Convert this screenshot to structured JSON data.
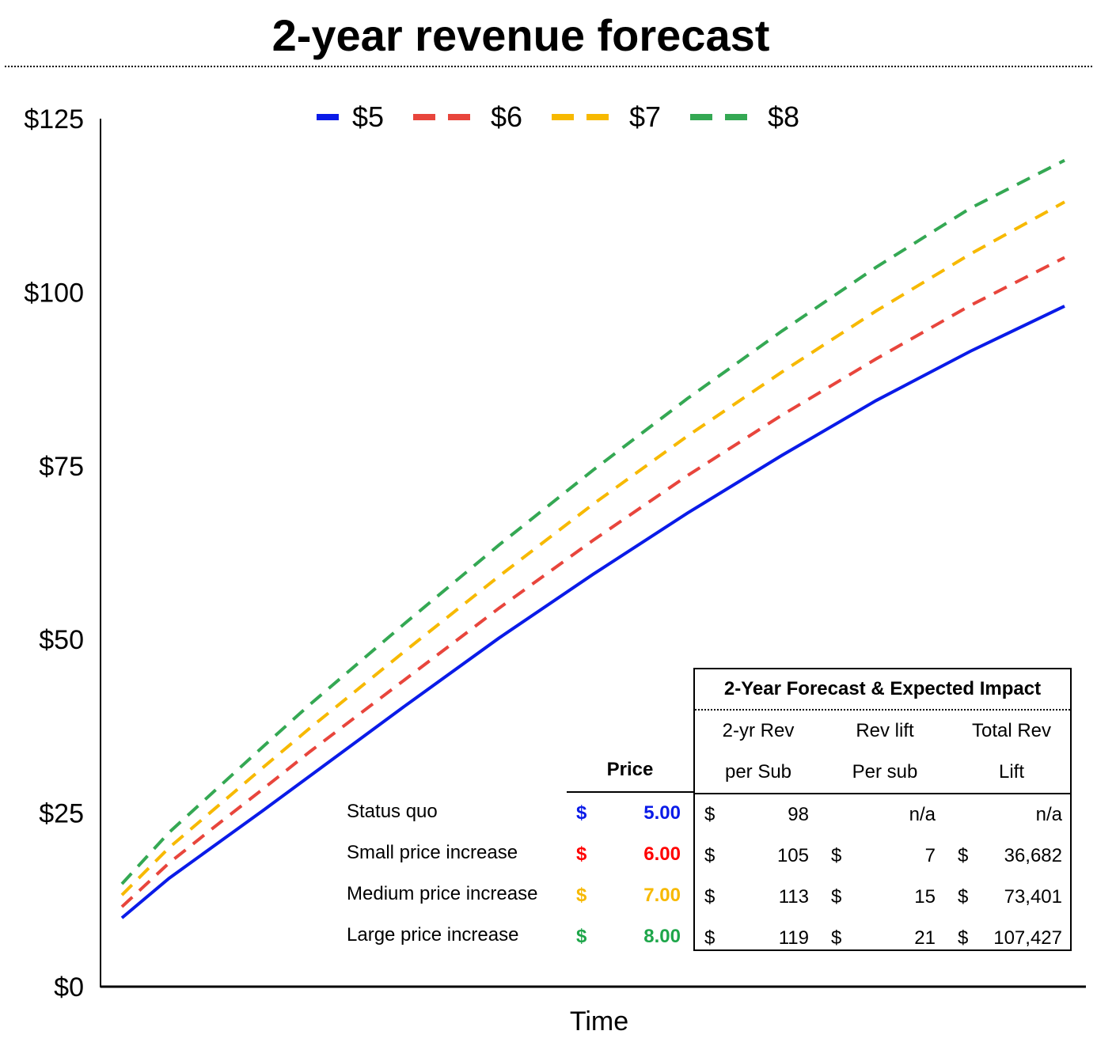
{
  "title": "2-year revenue forecast",
  "chart_data": {
    "type": "line",
    "title": "2-year revenue forecast",
    "xlabel": "Time",
    "ylabel": "",
    "ylim": [
      0,
      125
    ],
    "yticks": [
      "$0",
      "$25",
      "$50",
      "$75",
      "$100",
      "$125"
    ],
    "ytick_values": [
      0,
      25,
      50,
      75,
      100,
      125
    ],
    "legend_position": "top",
    "x": [
      0,
      0.05,
      0.1,
      0.15,
      0.2,
      0.3,
      0.4,
      0.5,
      0.6,
      0.7,
      0.8,
      0.9,
      1.0
    ],
    "series": [
      {
        "name": "$5",
        "color": "#0a1be8",
        "dash": "solid",
        "values": [
          9.9,
          15.6,
          20.5,
          25.4,
          30.4,
          40.4,
          50.2,
          59.4,
          68.2,
          76.5,
          84.4,
          91.5,
          98
        ]
      },
      {
        "name": "$6",
        "color": "#e8453c",
        "dash": "dashed",
        "values": [
          11.5,
          17.8,
          23.2,
          28.5,
          33.9,
          44.2,
          54.5,
          64.3,
          73.6,
          82.3,
          90.4,
          98.1,
          105
        ]
      },
      {
        "name": "$7",
        "color": "#f7b900",
        "dash": "dashed",
        "values": [
          13.2,
          20.0,
          25.8,
          31.6,
          37.3,
          48.3,
          59.1,
          69.5,
          79.3,
          88.5,
          97.3,
          105.5,
          113
        ]
      },
      {
        "name": "$8",
        "color": "#34a853",
        "dash": "dashed",
        "values": [
          14.8,
          22.2,
          28.4,
          34.6,
          40.7,
          52.3,
          63.6,
          74.4,
          84.7,
          94.4,
          103.6,
          112.1,
          119
        ]
      }
    ]
  },
  "table": {
    "rows": [
      {
        "label": "Status quo",
        "currency": "$",
        "price": "5.00",
        "color": "#0a1be8",
        "rev_cur": "$",
        "rev": "98",
        "lift_cur": "",
        "lift": "n/a",
        "total_cur": "",
        "total": "n/a"
      },
      {
        "label": "Small price increase",
        "currency": "$",
        "price": "6.00",
        "color": "#ff0000",
        "rev_cur": "$",
        "rev": "105",
        "lift_cur": "$",
        "lift": "7",
        "total_cur": "$",
        "total": "36,682"
      },
      {
        "label": "Medium price increase",
        "currency": "$",
        "price": "7.00",
        "color": "#f7b900",
        "rev_cur": "$",
        "rev": "113",
        "lift_cur": "$",
        "lift": "15",
        "total_cur": "$",
        "total": "73,401"
      },
      {
        "label": "Large price increase",
        "currency": "$",
        "price": "8.00",
        "color": "#1ea64a",
        "rev_cur": "$",
        "rev": "119",
        "lift_cur": "$",
        "lift": "21",
        "total_cur": "$",
        "total": "107,427"
      }
    ],
    "price_header": "Price",
    "impact_title": "2-Year Forecast & Expected Impact",
    "col1": [
      "2-yr Rev",
      "per Sub"
    ],
    "col2": [
      "Rev lift",
      "Per sub"
    ],
    "col3": [
      "Total Rev",
      "Lift"
    ]
  }
}
